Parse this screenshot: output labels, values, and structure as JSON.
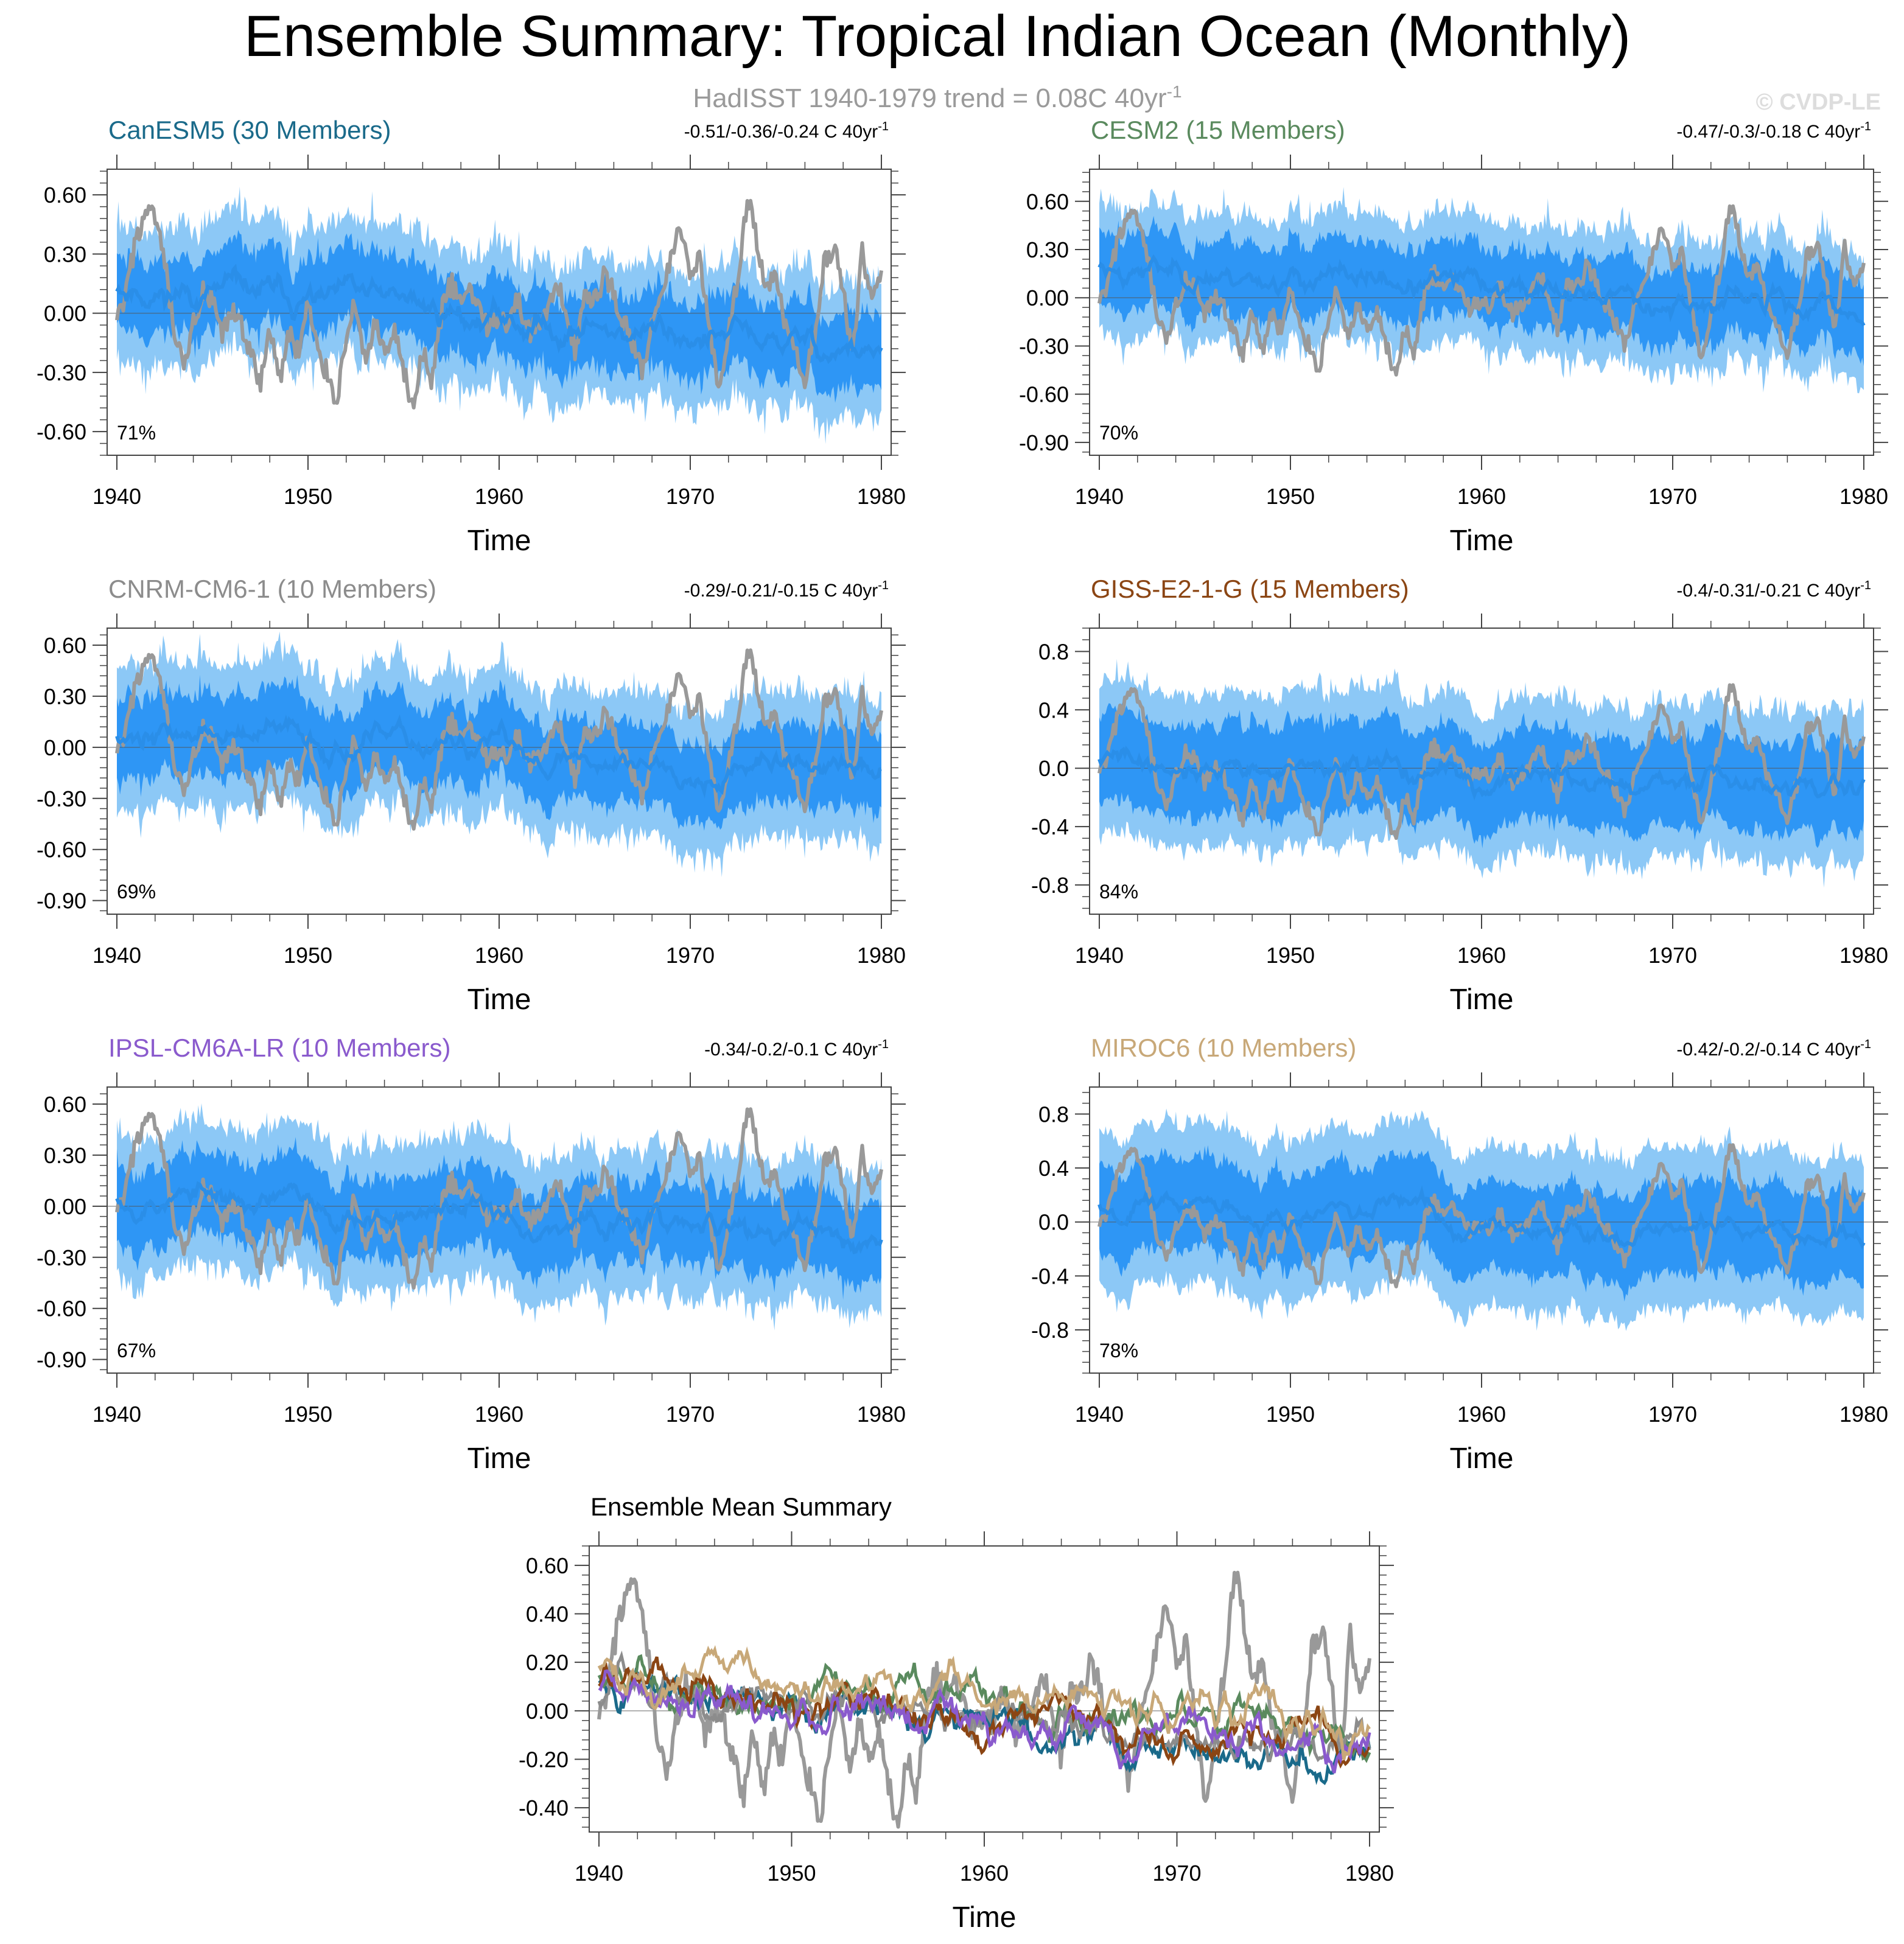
{
  "figure": {
    "title": "Ensemble Summary: Tropical Indian Ocean (Monthly)",
    "subtitle_prefix": "HadISST 1940-1979 trend = 0.08C 40yr",
    "subtitle_exp": "-1",
    "watermark": "© CVDP-LE",
    "colors": {
      "obs": "#999999",
      "mean_line": "#2a8ee8",
      "inner_band": "#2e96f5",
      "outer_band": "#8cc8f6",
      "axis": "#444444"
    }
  },
  "chart_data": [
    {
      "type": "line",
      "id": "canesm5",
      "title": "CanESM5 (30 Members)",
      "title_color": "#1a6a8a",
      "trend_label": "-0.51/-0.36/-0.24 C 40yr",
      "trend_exp": "-1",
      "percent_label": "71%",
      "xlabel": "Time",
      "xlim": [
        1940,
        1980
      ],
      "xticks": [
        1940,
        1950,
        1960,
        1970,
        1980
      ],
      "ylim": [
        -0.72,
        0.73
      ],
      "yticks": [
        0.6,
        0.3,
        0.0,
        -0.3,
        -0.6
      ],
      "ytick_labels": [
        "0.60",
        "0.30",
        "0.00",
        "-0.30",
        "-0.60"
      ],
      "mean_start": 0.15,
      "mean_end": -0.2,
      "inner_halfwidth": 0.16,
      "outer_halfwidth": 0.3,
      "seed": 11
    },
    {
      "type": "line",
      "id": "cesm2",
      "title": "CESM2 (15 Members)",
      "title_color": "#5a8a5e",
      "trend_label": "-0.47/-0.3/-0.18 C 40yr",
      "trend_exp": "-1",
      "percent_label": "70%",
      "xlabel": "Time",
      "xlim": [
        1940,
        1980
      ],
      "xticks": [
        1940,
        1950,
        1960,
        1970,
        1980
      ],
      "ylim": [
        -0.98,
        0.8
      ],
      "yticks": [
        0.6,
        0.3,
        0.0,
        -0.3,
        -0.6,
        -0.9
      ],
      "ytick_labels": [
        "0.60",
        "0.30",
        "0.00",
        "-0.30",
        "-0.60",
        "-0.90"
      ],
      "mean_start": 0.2,
      "mean_end": -0.08,
      "inner_halfwidth": 0.2,
      "outer_halfwidth": 0.36,
      "seed": 23
    },
    {
      "type": "line",
      "id": "cnrm",
      "title": "CNRM-CM6-1 (10 Members)",
      "title_color": "#8c8c8c",
      "trend_label": "-0.29/-0.21/-0.15 C 40yr",
      "trend_exp": "-1",
      "percent_label": "69%",
      "xlabel": "Time",
      "xlim": [
        1940,
        1980
      ],
      "xticks": [
        1940,
        1950,
        1960,
        1970,
        1980
      ],
      "ylim": [
        -0.98,
        0.7
      ],
      "yticks": [
        0.6,
        0.3,
        0.0,
        -0.3,
        -0.6,
        -0.9
      ],
      "ytick_labels": [
        "0.60",
        "0.30",
        "0.00",
        "-0.30",
        "-0.60",
        "-0.90"
      ],
      "mean_start": 0.1,
      "mean_end": -0.15,
      "inner_halfwidth": 0.2,
      "outer_halfwidth": 0.38,
      "seed": 37
    },
    {
      "type": "line",
      "id": "giss",
      "title": "GISS-E2-1-G (15 Members)",
      "title_color": "#8b4513",
      "trend_label": "-0.4/-0.31/-0.21 C 40yr",
      "trend_exp": "-1",
      "percent_label": "84%",
      "xlabel": "Time",
      "xlim": [
        1940,
        1980
      ],
      "xticks": [
        1940,
        1950,
        1960,
        1970,
        1980
      ],
      "ylim": [
        -1.0,
        0.96
      ],
      "yticks": [
        0.8,
        0.4,
        0.0,
        -0.4,
        -0.8
      ],
      "ytick_labels": [
        "0.8",
        "0.4",
        "0.0",
        "-0.4",
        "-0.8"
      ],
      "mean_start": 0.05,
      "mean_end": -0.17,
      "inner_halfwidth": 0.28,
      "outer_halfwidth": 0.48,
      "seed": 41
    },
    {
      "type": "line",
      "id": "ipsl",
      "title": "IPSL-CM6A-LR (10 Members)",
      "title_color": "#8a5acd",
      "trend_label": "-0.34/-0.2/-0.1 C 40yr",
      "trend_exp": "-1",
      "percent_label": "67%",
      "xlabel": "Time",
      "xlim": [
        1940,
        1980
      ],
      "xticks": [
        1940,
        1950,
        1960,
        1970,
        1980
      ],
      "ylim": [
        -0.98,
        0.7
      ],
      "yticks": [
        0.6,
        0.3,
        0.0,
        -0.3,
        -0.6,
        -0.9
      ],
      "ytick_labels": [
        "0.60",
        "0.30",
        "0.00",
        "-0.30",
        "-0.60",
        "-0.90"
      ],
      "mean_start": 0.08,
      "mean_end": -0.2,
      "inner_halfwidth": 0.2,
      "outer_halfwidth": 0.38,
      "seed": 53
    },
    {
      "type": "line",
      "id": "miroc6",
      "title": "MIROC6 (10 Members)",
      "title_color": "#c8a878",
      "trend_label": "-0.42/-0.2/-0.14 C 40yr",
      "trend_exp": "-1",
      "percent_label": "78%",
      "xlabel": "Time",
      "xlim": [
        1940,
        1980
      ],
      "xticks": [
        1940,
        1950,
        1960,
        1970,
        1980
      ],
      "ylim": [
        -1.12,
        1.0
      ],
      "yticks": [
        0.8,
        0.4,
        0.0,
        -0.4,
        -0.8
      ],
      "ytick_labels": [
        "0.8",
        "0.4",
        "0.0",
        "-0.4",
        "-0.8"
      ],
      "mean_start": 0.15,
      "mean_end": -0.1,
      "inner_halfwidth": 0.3,
      "outer_halfwidth": 0.55,
      "seed": 67
    },
    {
      "type": "line",
      "id": "summary",
      "title": "Ensemble Mean Summary",
      "xlabel": "Time",
      "xlim": [
        1940,
        1980
      ],
      "xticks": [
        1940,
        1950,
        1960,
        1970,
        1980
      ],
      "ylim": [
        -0.5,
        0.68
      ],
      "yticks": [
        0.6,
        0.4,
        0.2,
        0.0,
        -0.2,
        -0.4
      ],
      "ytick_labels": [
        "0.60",
        "0.40",
        "0.20",
        "0.00",
        "-0.20",
        "-0.40"
      ],
      "series": [
        {
          "name": "CanESM5",
          "color": "#1a6a8a",
          "start": 0.12,
          "end": -0.2,
          "seed": 101
        },
        {
          "name": "CESM2",
          "color": "#5a8a5e",
          "start": 0.15,
          "end": -0.12,
          "seed": 102
        },
        {
          "name": "CNRM-CM6-1",
          "color": "#8c8c8c",
          "start": 0.05,
          "end": -0.12,
          "seed": 103
        },
        {
          "name": "GISS-E2-1-G",
          "color": "#8b4513",
          "start": 0.12,
          "end": -0.18,
          "seed": 104
        },
        {
          "name": "IPSL-CM6A-LR",
          "color": "#8a5acd",
          "start": 0.08,
          "end": -0.16,
          "seed": 105
        },
        {
          "name": "MIROC6",
          "color": "#c8a878",
          "start": 0.18,
          "end": -0.1,
          "seed": 106
        }
      ]
    }
  ],
  "observations": {
    "name": "HadISST",
    "color": "#999999",
    "monthly_anomaly_keypoints": [
      [
        1940.0,
        -0.05
      ],
      [
        1940.5,
        0.1
      ],
      [
        1941.0,
        0.38
      ],
      [
        1941.5,
        0.5
      ],
      [
        1942.0,
        0.48
      ],
      [
        1942.5,
        0.25
      ],
      [
        1943.0,
        -0.1
      ],
      [
        1943.5,
        -0.3
      ],
      [
        1944.0,
        -0.05
      ],
      [
        1944.5,
        0.1
      ],
      [
        1945.0,
        0.05
      ],
      [
        1945.5,
        -0.12
      ],
      [
        1946.0,
        0.0
      ],
      [
        1946.5,
        -0.05
      ],
      [
        1947.0,
        -0.2
      ],
      [
        1947.5,
        -0.38
      ],
      [
        1948.0,
        -0.05
      ],
      [
        1948.5,
        -0.35
      ],
      [
        1949.0,
        -0.1
      ],
      [
        1949.5,
        -0.2
      ],
      [
        1950.0,
        0.05
      ],
      [
        1950.5,
        -0.2
      ],
      [
        1951.0,
        -0.3
      ],
      [
        1951.5,
        -0.45
      ],
      [
        1952.0,
        -0.1
      ],
      [
        1952.5,
        0.05
      ],
      [
        1953.0,
        -0.25
      ],
      [
        1953.5,
        -0.05
      ],
      [
        1954.0,
        -0.22
      ],
      [
        1954.5,
        -0.1
      ],
      [
        1955.0,
        -0.3
      ],
      [
        1955.5,
        -0.48
      ],
      [
        1956.0,
        -0.2
      ],
      [
        1956.5,
        -0.35
      ],
      [
        1957.0,
        0.02
      ],
      [
        1957.5,
        0.15
      ],
      [
        1958.0,
        0.05
      ],
      [
        1958.5,
        0.12
      ],
      [
        1959.0,
        0.02
      ],
      [
        1959.5,
        -0.08
      ],
      [
        1960.0,
        0.0
      ],
      [
        1960.5,
        -0.05
      ],
      [
        1961.0,
        0.08
      ],
      [
        1961.5,
        -0.1
      ],
      [
        1962.0,
        -0.05
      ],
      [
        1962.5,
        0.0
      ],
      [
        1963.0,
        0.12
      ],
      [
        1963.5,
        0.05
      ],
      [
        1964.0,
        -0.2
      ],
      [
        1964.5,
        0.1
      ],
      [
        1965.0,
        0.05
      ],
      [
        1965.5,
        0.2
      ],
      [
        1966.0,
        0.1
      ],
      [
        1966.5,
        -0.05
      ],
      [
        1967.0,
        -0.15
      ],
      [
        1967.5,
        -0.3
      ],
      [
        1968.0,
        -0.05
      ],
      [
        1968.5,
        0.05
      ],
      [
        1969.0,
        0.3
      ],
      [
        1969.5,
        0.45
      ],
      [
        1970.0,
        0.2
      ],
      [
        1970.5,
        0.3
      ],
      [
        1971.0,
        -0.1
      ],
      [
        1971.5,
        -0.38
      ],
      [
        1972.0,
        -0.1
      ],
      [
        1972.5,
        0.2
      ],
      [
        1973.0,
        0.6
      ],
      [
        1973.5,
        0.35
      ],
      [
        1974.0,
        0.1
      ],
      [
        1974.5,
        0.2
      ],
      [
        1975.0,
        -0.1
      ],
      [
        1975.5,
        -0.2
      ],
      [
        1976.0,
        -0.38
      ],
      [
        1976.5,
        -0.1
      ],
      [
        1977.0,
        0.25
      ],
      [
        1977.5,
        0.35
      ],
      [
        1978.0,
        0.1
      ],
      [
        1978.5,
        -0.2
      ],
      [
        1979.0,
        0.3
      ],
      [
        1979.5,
        0.05
      ],
      [
        1980.0,
        0.25
      ]
    ]
  }
}
